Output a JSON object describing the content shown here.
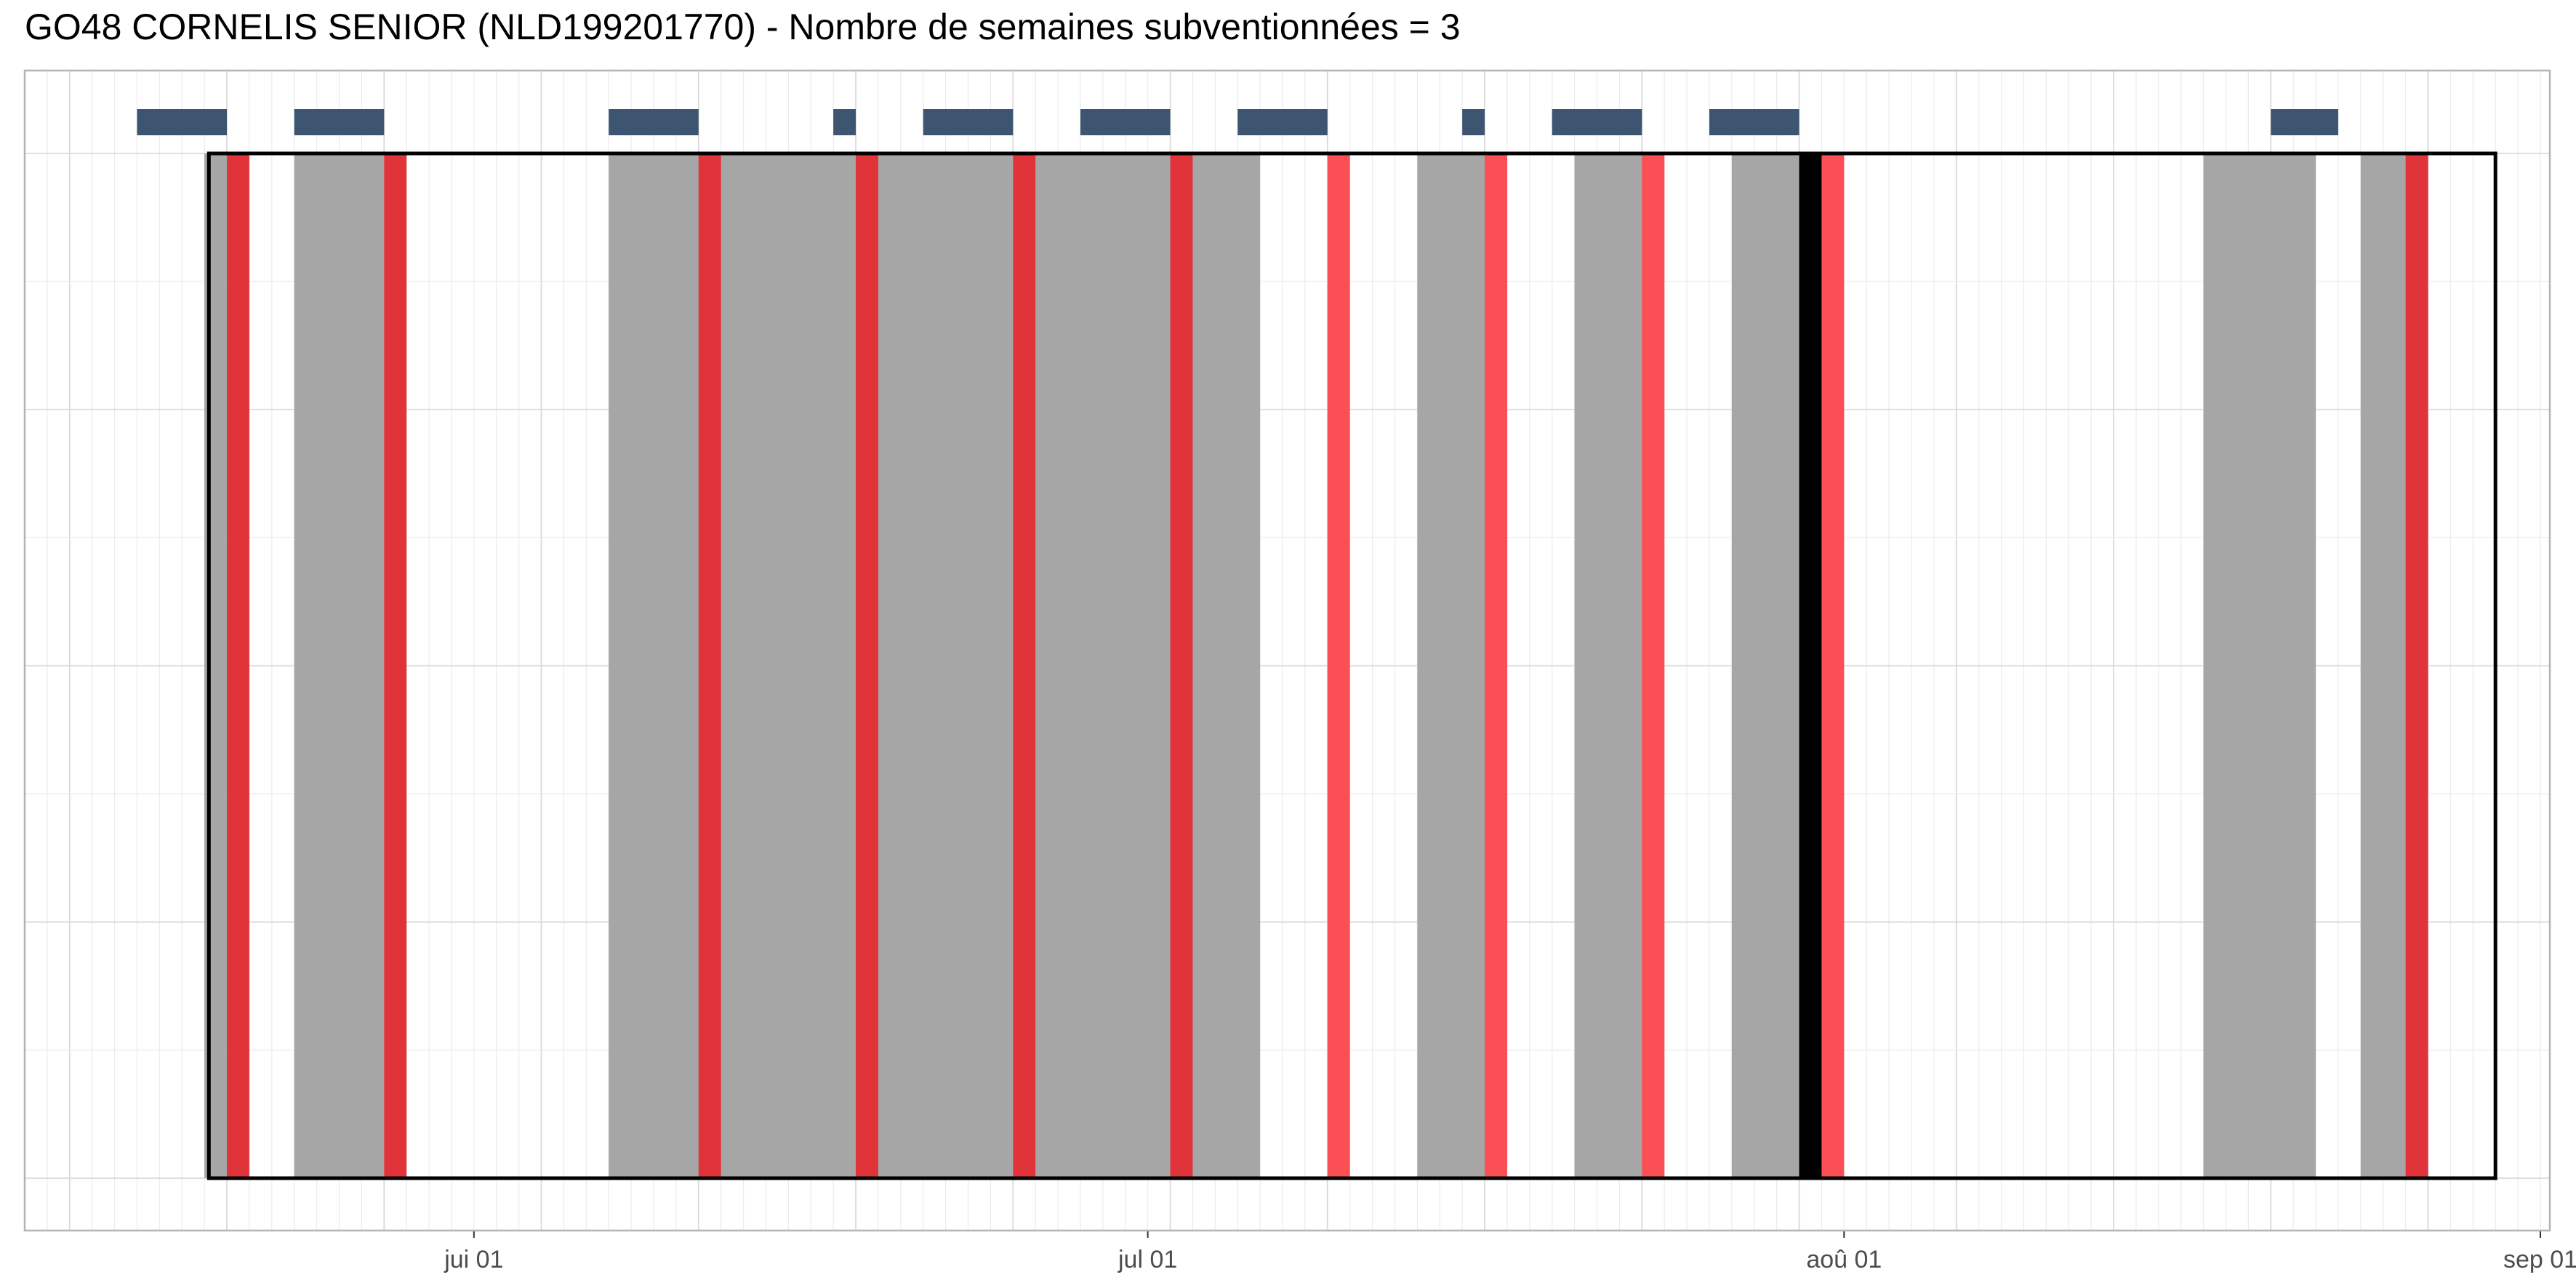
{
  "title": "GO48 CORNELIS SENIOR (NLD199201770) - Nombre de semaines subventionnées = 3",
  "chart_data": {
    "type": "timeline",
    "title": "GO48 CORNELIS SENIOR (NLD199201770) - Nombre de semaines subventionnées = 3",
    "x_axis": {
      "type": "date",
      "range": [
        "2023-05-12",
        "2023-09-01"
      ],
      "ticks": [
        {
          "date": "2023-06-01",
          "label": "jui 01"
        },
        {
          "date": "2023-07-01",
          "label": "jul 01"
        },
        {
          "date": "2023-08-01",
          "label": "aoû 01"
        },
        {
          "date": "2023-09-01",
          "label": "sep 01"
        }
      ],
      "minor_gridlines": "daily",
      "major_gridlines": "weekly"
    },
    "period": {
      "start": "2023-05-20",
      "end": "2023-08-29"
    },
    "gray_periods": [
      {
        "start": "2023-05-20",
        "end": "2023-05-21"
      },
      {
        "start": "2023-05-24",
        "end": "2023-05-28"
      },
      {
        "start": "2023-06-07",
        "end": "2023-06-18"
      },
      {
        "start": "2023-06-18",
        "end": "2023-06-25"
      },
      {
        "start": "2023-06-25",
        "end": "2023-07-02"
      },
      {
        "start": "2023-07-02",
        "end": "2023-07-06"
      },
      {
        "start": "2023-07-13",
        "end": "2023-07-17"
      },
      {
        "start": "2023-07-20",
        "end": "2023-07-24"
      },
      {
        "start": "2023-07-27",
        "end": "2023-07-30"
      },
      {
        "start": "2023-08-17",
        "end": "2023-08-22"
      },
      {
        "start": "2023-08-24",
        "end": "2023-08-27"
      }
    ],
    "red_markers": [
      {
        "date": "2023-05-21",
        "shade": "dark"
      },
      {
        "date": "2023-05-28",
        "shade": "dark"
      },
      {
        "date": "2023-06-11",
        "shade": "dark"
      },
      {
        "date": "2023-06-18",
        "shade": "dark"
      },
      {
        "date": "2023-06-25",
        "shade": "dark"
      },
      {
        "date": "2023-07-02",
        "shade": "dark"
      },
      {
        "date": "2023-07-09",
        "shade": "light"
      },
      {
        "date": "2023-07-16",
        "shade": "light"
      },
      {
        "date": "2023-07-23",
        "shade": "light"
      },
      {
        "date": "2023-07-31",
        "shade": "light"
      },
      {
        "date": "2023-08-26",
        "shade": "dark"
      }
    ],
    "black_markers": [
      {
        "date": "2023-07-30"
      }
    ],
    "top_bars": [
      {
        "start": "2023-05-17",
        "end": "2023-05-21"
      },
      {
        "start": "2023-05-24",
        "end": "2023-05-28"
      },
      {
        "start": "2023-06-07",
        "end": "2023-06-11"
      },
      {
        "start": "2023-06-17",
        "end": "2023-06-18"
      },
      {
        "start": "2023-06-21",
        "end": "2023-06-25"
      },
      {
        "start": "2023-06-28",
        "end": "2023-07-02"
      },
      {
        "start": "2023-07-05",
        "end": "2023-07-09"
      },
      {
        "start": "2023-07-15",
        "end": "2023-07-16"
      },
      {
        "start": "2023-07-19",
        "end": "2023-07-23"
      },
      {
        "start": "2023-07-26",
        "end": "2023-07-30"
      },
      {
        "start": "2023-08-20",
        "end": "2023-08-23"
      }
    ],
    "colors": {
      "gray_period": "#a6a6a6",
      "red_dark": "#e0343a",
      "red_light": "#fb4f55",
      "black_marker": "#000000",
      "top_bar": "#3d5570",
      "period_border": "#000000",
      "grid_minor": "#ebebeb",
      "grid_major": "#d9d9d9",
      "panel_border": "#b3b3b3"
    }
  }
}
